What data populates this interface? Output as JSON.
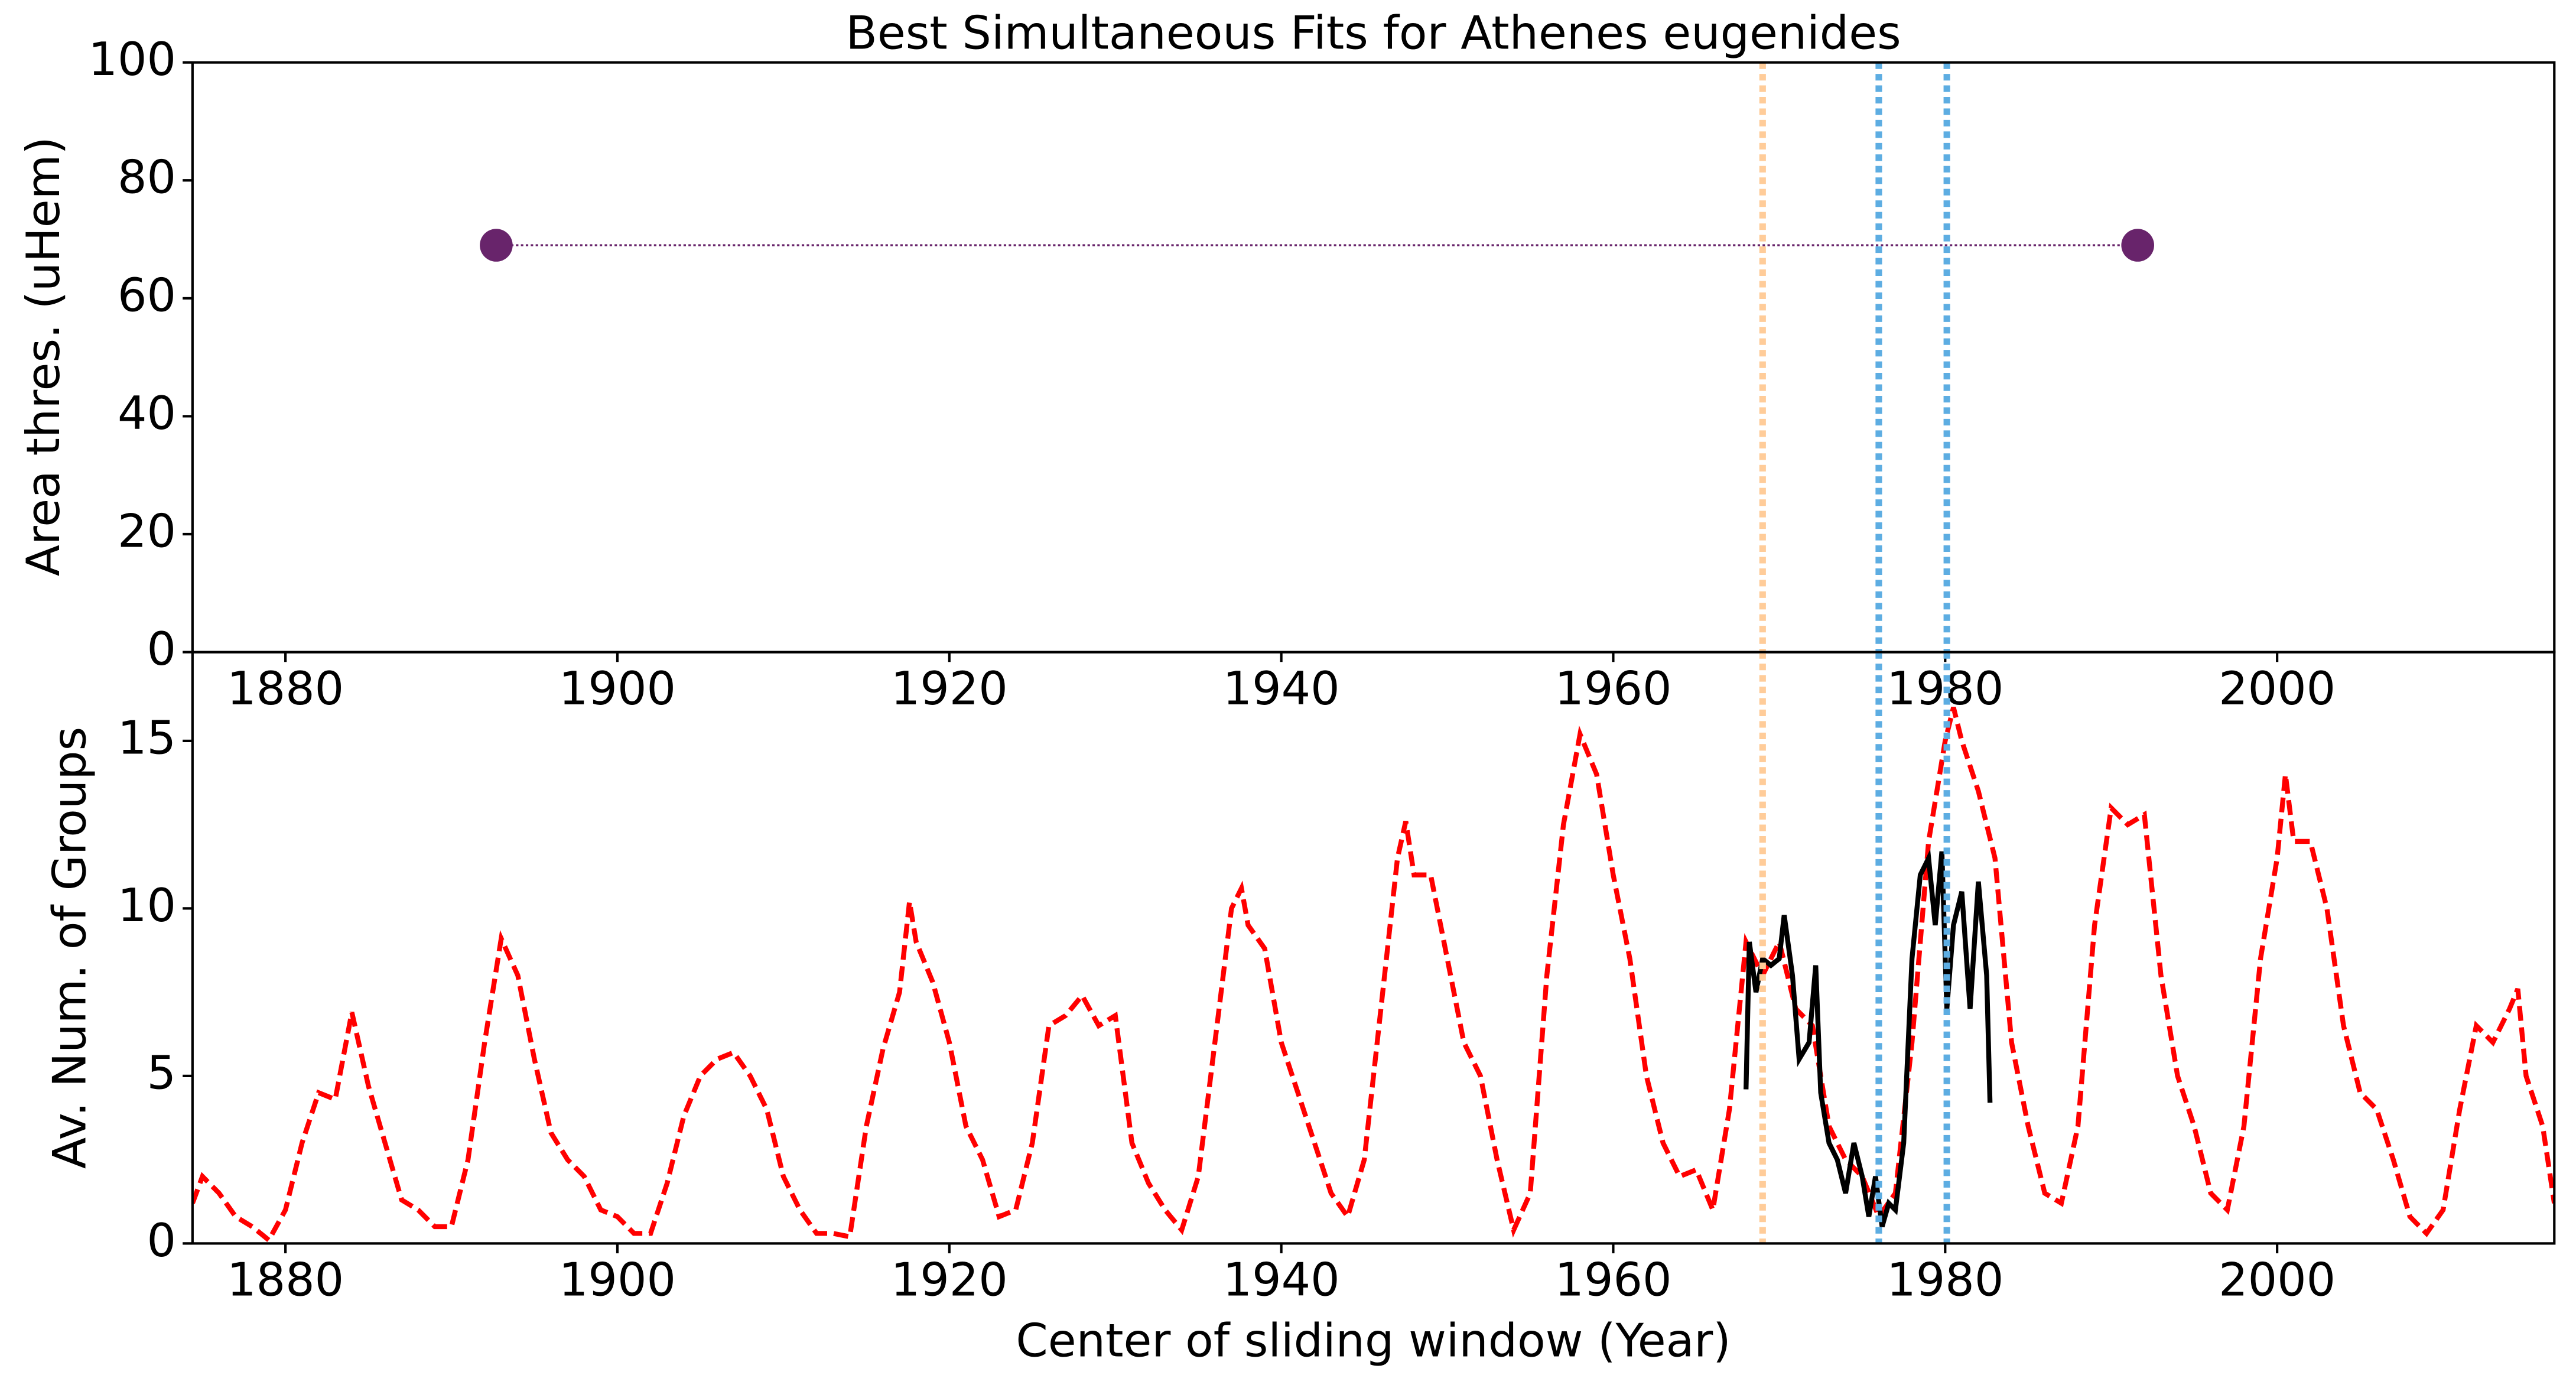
{
  "chart_data": [
    {
      "type": "scatter",
      "title": "Best Simultaneous Fits for Athenes eugenides",
      "y_label": "Area thres. (uHem)",
      "xlim": [
        1874.4,
        2016.7
      ],
      "xticks": [
        1880,
        1900,
        1920,
        1940,
        1960,
        1980,
        2000
      ],
      "ylim": [
        0,
        100
      ],
      "yticks": [
        0,
        20,
        40,
        60,
        80,
        100
      ],
      "series": [
        {
          "color": "#68246b",
          "x": [
            1892.7,
            1991.6
          ],
          "values": [
            69,
            69
          ],
          "line_style": "dotted"
        }
      ],
      "vlines": [
        {
          "value": 1969.0,
          "color": "#ffcc99"
        },
        {
          "value": 1976.0,
          "color": "#5dade2"
        },
        {
          "value": 1980.1,
          "color": "#5dade2"
        }
      ]
    },
    {
      "type": "line",
      "x_label": "Center of sliding window (Year)",
      "y_label": "Av. Num. of Groups",
      "xlim": [
        1874.4,
        2016.7
      ],
      "xticks": [
        1880,
        1900,
        1920,
        1940,
        1960,
        1980,
        2000
      ],
      "ylim": [
        0,
        17.65
      ],
      "yticks": [
        0,
        5,
        10,
        15
      ],
      "series": [
        {
          "color": "#ff0000",
          "line_style": "dashed",
          "x": [
            1874.4,
            1875,
            1876,
            1877,
            1878,
            1879,
            1880,
            1881,
            1882,
            1883,
            1884,
            1885,
            1886,
            1887,
            1888,
            1889,
            1890,
            1891,
            1892,
            1893,
            1894,
            1895,
            1896,
            1897,
            1898,
            1899,
            1900,
            1901,
            1902,
            1903,
            1904,
            1905,
            1906,
            1907,
            1908,
            1909,
            1910,
            1911,
            1912,
            1913,
            1914,
            1915,
            1916,
            1917,
            1917.6,
            1918,
            1919,
            1920,
            1921,
            1922,
            1923,
            1924,
            1925,
            1926,
            1927,
            1928,
            1929,
            1930,
            1931,
            1932,
            1933,
            1934,
            1935,
            1936,
            1937,
            1937.6,
            1938,
            1939,
            1940,
            1941,
            1942,
            1943,
            1944,
            1945,
            1946,
            1947,
            1947.5,
            1948,
            1949,
            1950,
            1951,
            1952,
            1953,
            1954,
            1955,
            1956,
            1957,
            1958,
            1959,
            1960,
            1961,
            1962,
            1963,
            1964,
            1965,
            1966,
            1967,
            1968,
            1969,
            1970,
            1971,
            1972,
            1973,
            1974,
            1975,
            1976,
            1977,
            1978,
            1979,
            1980,
            1980.5,
            1981,
            1982,
            1983,
            1984,
            1985,
            1986,
            1987,
            1988,
            1989,
            1990,
            1991,
            1992,
            1993,
            1994,
            1995,
            1996,
            1997,
            1998,
            1999,
            2000,
            2000.5,
            2001,
            2002,
            2003,
            2004,
            2005,
            2006,
            2007,
            2008,
            2009,
            2010,
            2011,
            2012,
            2013,
            2014,
            2014.5,
            2015,
            2016,
            2016.7
          ],
          "values": [
            1.2,
            2.0,
            1.5,
            0.8,
            0.5,
            0.1,
            1.0,
            3.0,
            4.5,
            4.3,
            6.9,
            4.7,
            3.0,
            1.3,
            1.0,
            0.5,
            0.5,
            2.5,
            6.0,
            9.1,
            8.0,
            5.5,
            3.3,
            2.5,
            2.0,
            1.0,
            0.8,
            0.3,
            0.3,
            1.8,
            3.8,
            5.0,
            5.5,
            5.7,
            5.0,
            4.0,
            2.0,
            1.0,
            0.3,
            0.3,
            0.2,
            3.5,
            5.8,
            7.5,
            10.2,
            9.0,
            7.8,
            6.0,
            3.5,
            2.5,
            0.8,
            1.0,
            3.0,
            6.5,
            6.8,
            7.4,
            6.5,
            6.8,
            3.0,
            1.8,
            1.0,
            0.4,
            2.0,
            6.0,
            10.0,
            10.6,
            9.5,
            8.8,
            6.0,
            4.5,
            3.0,
            1.5,
            0.8,
            2.5,
            7.0,
            11.5,
            12.6,
            11.0,
            11.0,
            8.5,
            6.0,
            5.0,
            2.5,
            0.4,
            1.5,
            8.0,
            12.5,
            15.2,
            14.0,
            11.0,
            8.5,
            5.0,
            3.0,
            2.0,
            2.2,
            1.0,
            4.0,
            9.0,
            8.0,
            9.0,
            7.0,
            6.5,
            3.5,
            2.5,
            2.0,
            0.8,
            1.5,
            6.0,
            12.0,
            15.0,
            16.0,
            15.0,
            13.5,
            11.5,
            6.0,
            3.5,
            1.5,
            1.2,
            3.5,
            9.5,
            13.0,
            12.5,
            12.8,
            8.0,
            5.0,
            3.5,
            1.5,
            1.0,
            3.5,
            8.5,
            11.5,
            14.0,
            12.0,
            12.0,
            10.0,
            6.5,
            4.5,
            4.0,
            2.5,
            0.8,
            0.3,
            1.0,
            4.0,
            6.5,
            6.0,
            7.0,
            7.6,
            5.0,
            3.5,
            1.2
          ]
        },
        {
          "color": "#000000",
          "line_style": "solid",
          "x": [
            1968.0,
            1968.2,
            1968.6,
            1969.0,
            1969.5,
            1970.0,
            1970.3,
            1970.8,
            1971.2,
            1971.8,
            1972.2,
            1972.5,
            1973.0,
            1973.5,
            1974.0,
            1974.5,
            1975.0,
            1975.4,
            1975.8,
            1976.2,
            1976.6,
            1977.0,
            1977.5,
            1978.0,
            1978.5,
            1979.0,
            1979.4,
            1979.8,
            1980.1,
            1980.5,
            1981.0,
            1981.5,
            1982.0,
            1982.5,
            1982.7
          ],
          "values": [
            4.6,
            9.0,
            7.5,
            8.5,
            8.3,
            8.5,
            9.8,
            8.0,
            5.5,
            6.0,
            8.3,
            4.5,
            3.0,
            2.5,
            1.5,
            3.0,
            2.0,
            0.8,
            2.0,
            0.5,
            1.2,
            1.0,
            3.0,
            8.5,
            11.0,
            11.5,
            9.5,
            11.7,
            7.0,
            9.5,
            10.5,
            7.0,
            10.8,
            8.0,
            4.2
          ]
        }
      ],
      "vlines": [
        {
          "value": 1969.0,
          "color": "#ffcc99"
        },
        {
          "value": 1976.0,
          "color": "#5dade2"
        },
        {
          "value": 1980.1,
          "color": "#5dade2"
        }
      ]
    }
  ]
}
